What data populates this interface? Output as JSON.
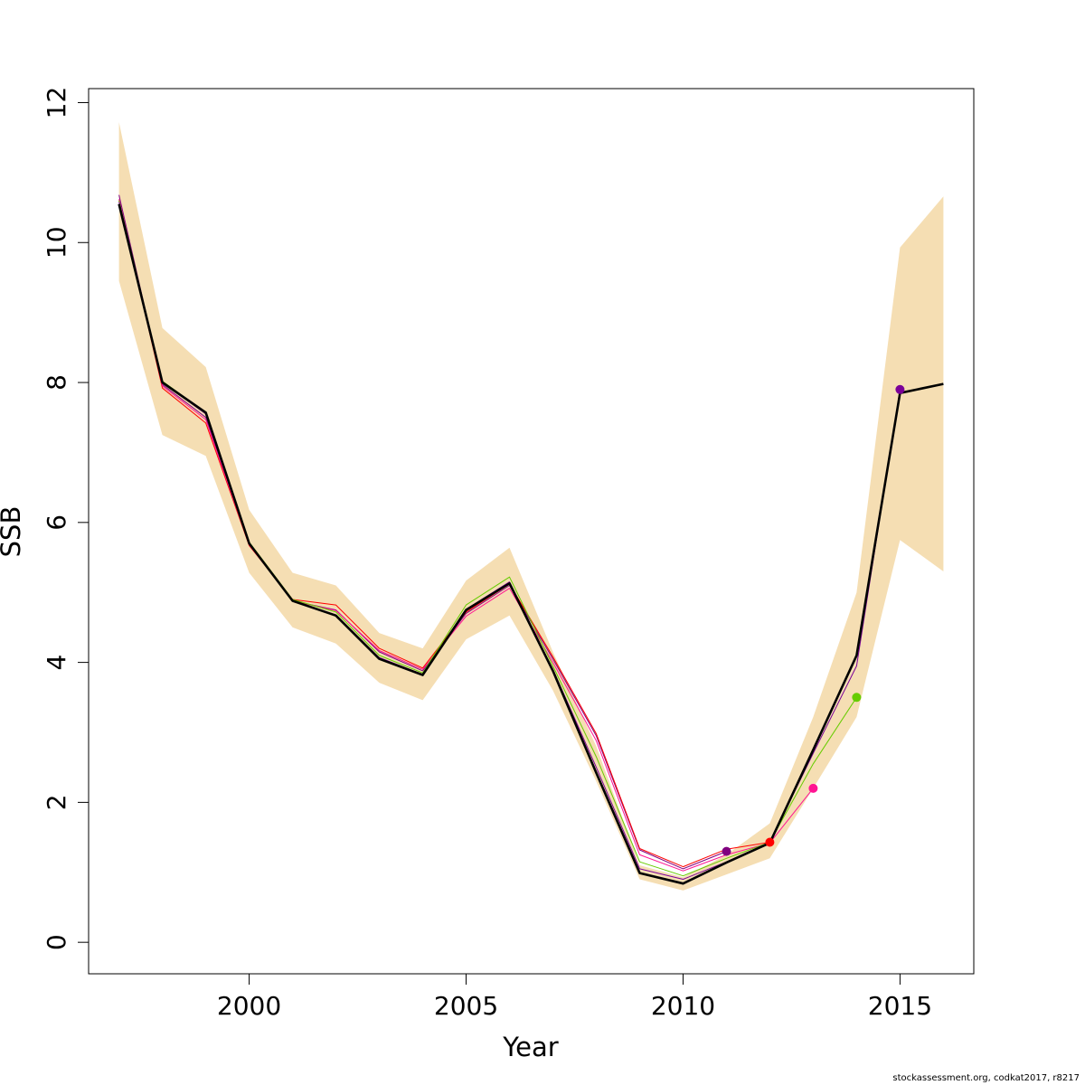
{
  "chart_data": {
    "type": "line",
    "title": "",
    "xlabel": "Year",
    "ylabel": "SSB",
    "xlim": [
      1996.3,
      2016.7
    ],
    "ylim": [
      -0.45,
      12.2
    ],
    "x_ticks": [
      2000,
      2005,
      2010,
      2015
    ],
    "x_tick_labels": [
      "2000",
      "2005",
      "2010",
      "2015"
    ],
    "y_ticks": [
      0,
      2,
      4,
      6,
      8,
      10,
      12
    ],
    "y_tick_labels": [
      "0",
      "2",
      "4",
      "6",
      "8",
      "10",
      "12"
    ],
    "grid": false,
    "legend": "none",
    "band": {
      "color": "#F5DEB3",
      "x": [
        1997,
        1998,
        1999,
        2000,
        2001,
        2002,
        2003,
        2004,
        2005,
        2006,
        2007,
        2008,
        2009,
        2010,
        2011,
        2012,
        2013,
        2014,
        2015,
        2016
      ],
      "lower": [
        9.45,
        7.25,
        6.95,
        5.28,
        4.5,
        4.27,
        3.71,
        3.46,
        4.33,
        4.67,
        3.6,
        2.3,
        0.9,
        0.74,
        0.97,
        1.2,
        2.2,
        3.22,
        5.75,
        5.3
      ],
      "upper": [
        11.72,
        8.78,
        8.22,
        6.18,
        5.28,
        5.1,
        4.42,
        4.2,
        5.17,
        5.64,
        4.15,
        2.8,
        1.1,
        0.93,
        1.25,
        1.7,
        3.22,
        5.0,
        9.93,
        10.66
      ]
    },
    "series": [
      {
        "color": "#800080",
        "x": [
          1997,
          1998,
          1999,
          2000,
          2001,
          2002,
          2003,
          2004,
          2005,
          2006,
          2007,
          2008,
          2009,
          2010,
          2011
        ],
        "values": [
          10.68,
          7.97,
          7.5,
          5.68,
          4.88,
          4.75,
          4.15,
          3.88,
          4.7,
          5.1,
          4.05,
          2.95,
          1.32,
          1.05,
          1.3
        ],
        "endpoint": true
      },
      {
        "color": "#FF0000",
        "x": [
          1997,
          1998,
          1999,
          2000,
          2001,
          2002,
          2003,
          2004,
          2005,
          2006,
          2007,
          2008,
          2009,
          2010,
          2011,
          2012
        ],
        "values": [
          10.6,
          7.92,
          7.42,
          5.67,
          4.9,
          4.82,
          4.2,
          3.92,
          4.72,
          5.12,
          4.08,
          2.98,
          1.34,
          1.08,
          1.33,
          1.43
        ],
        "endpoint": true
      },
      {
        "color": "#FF1493",
        "x": [
          1997,
          1998,
          1999,
          2000,
          2001,
          2002,
          2003,
          2004,
          2005,
          2006,
          2007,
          2008,
          2009,
          2010,
          2011,
          2012,
          2013
        ],
        "values": [
          10.62,
          7.95,
          7.47,
          5.68,
          4.88,
          4.74,
          4.17,
          3.9,
          4.66,
          5.06,
          4.0,
          2.88,
          1.25,
          1.02,
          1.25,
          1.42,
          2.2
        ],
        "endpoint": true
      },
      {
        "color": "#66CC00",
        "x": [
          1997,
          1998,
          1999,
          2000,
          2001,
          2002,
          2003,
          2004,
          2005,
          2006,
          2007,
          2008,
          2009,
          2010,
          2011,
          2012,
          2013,
          2014
        ],
        "values": [
          10.6,
          8.02,
          7.57,
          5.72,
          4.9,
          4.72,
          4.1,
          3.85,
          4.82,
          5.22,
          3.95,
          2.65,
          1.15,
          0.95,
          1.2,
          1.43,
          2.55,
          3.5
        ],
        "endpoint": true
      },
      {
        "color": "#7B0099",
        "x": [
          1997,
          1998,
          1999,
          2000,
          2001,
          2002,
          2003,
          2004,
          2005,
          2006,
          2007,
          2008,
          2009,
          2010,
          2011,
          2012,
          2013,
          2014,
          2015
        ],
        "values": [
          10.58,
          8.0,
          7.55,
          5.7,
          4.88,
          4.68,
          4.07,
          3.83,
          4.76,
          5.15,
          3.9,
          2.5,
          1.05,
          0.9,
          1.15,
          1.43,
          2.7,
          3.95,
          7.9
        ],
        "endpoint": true
      },
      {
        "color": "#000000",
        "width": 2.6,
        "x": [
          1997,
          1998,
          1999,
          2000,
          2001,
          2002,
          2003,
          2004,
          2005,
          2006,
          2007,
          2008,
          2009,
          2010,
          2011,
          2012,
          2013,
          2014,
          2015,
          2016
        ],
        "values": [
          10.55,
          8.0,
          7.57,
          5.7,
          4.88,
          4.67,
          4.05,
          3.82,
          4.75,
          5.13,
          3.88,
          2.42,
          0.99,
          0.84,
          1.14,
          1.42,
          2.75,
          4.1,
          7.85,
          7.98
        ],
        "endpoint": false
      }
    ]
  },
  "footnote": "stockassessment.org, codkat2017, r8217"
}
